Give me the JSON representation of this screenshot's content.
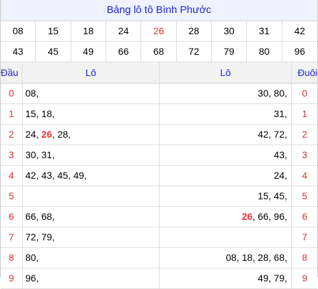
{
  "title": "Bảng lô tô Bình Phước",
  "numbers_row1": [
    "08",
    "15",
    "18",
    "24",
    "26",
    "28",
    "30",
    "31",
    "42"
  ],
  "numbers_row2": [
    "43",
    "45",
    "49",
    "66",
    "68",
    "72",
    "79",
    "80",
    "96"
  ],
  "highlight": "26",
  "headers": {
    "dau": "Đầu",
    "lo_left": "Lô",
    "lo_right": "Lô",
    "duoi": "Đuôi"
  },
  "rows": [
    {
      "digit": "0",
      "dau": [
        "08"
      ],
      "duoi": [
        "30",
        "80"
      ]
    },
    {
      "digit": "1",
      "dau": [
        "15",
        "18"
      ],
      "duoi": [
        "31"
      ]
    },
    {
      "digit": "2",
      "dau": [
        "24",
        "26",
        "28"
      ],
      "duoi": [
        "42",
        "72"
      ]
    },
    {
      "digit": "3",
      "dau": [
        "30",
        "31"
      ],
      "duoi": [
        "43"
      ]
    },
    {
      "digit": "4",
      "dau": [
        "42",
        "43",
        "45",
        "49"
      ],
      "duoi": [
        "24"
      ]
    },
    {
      "digit": "5",
      "dau": [],
      "duoi": [
        "15",
        "45"
      ]
    },
    {
      "digit": "6",
      "dau": [
        "66",
        "68"
      ],
      "duoi": [
        "26",
        "66",
        "96"
      ]
    },
    {
      "digit": "7",
      "dau": [
        "72",
        "79"
      ],
      "duoi": []
    },
    {
      "digit": "8",
      "dau": [
        "80"
      ],
      "duoi": [
        "08",
        "18",
        "28",
        "68"
      ]
    },
    {
      "digit": "9",
      "dau": [
        "96"
      ],
      "duoi": [
        "49",
        "79"
      ]
    }
  ],
  "colors": {
    "title": "#2324d1",
    "highlight": "#e6323c",
    "digit": "#dd3333"
  }
}
